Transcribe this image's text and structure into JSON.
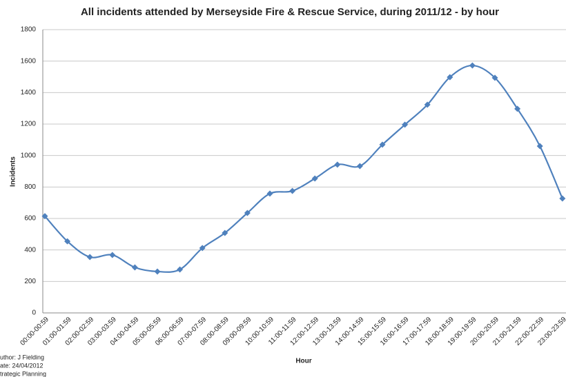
{
  "chart_data": {
    "type": "line",
    "title": "All incidents attended by Merseyside Fire & Rescue Service, during 2011/12 - by hour",
    "x_label": "Hour",
    "y_label": "Incidents",
    "categories": [
      "00:00-00:59",
      "01:00-01:59",
      "02:00-02:59",
      "03:00-03:59",
      "04:00-04:59",
      "05:00-05:59",
      "06:00-06:59",
      "07:00-07:59",
      "08:00-08:59",
      "09:00-09:59",
      "10:00-10:59",
      "11:00-11:59",
      "12:00-12:59",
      "13:00-13:59",
      "14:00-14:59",
      "15:00-15:59",
      "16:00-16:59",
      "17:00-17:59",
      "18:00-18:59",
      "19:00-19:59",
      "20:00-20:59",
      "21:00-21:59",
      "22:00-22:59",
      "23:00-23:59"
    ],
    "series": [
      {
        "name": "Incidents",
        "color": "#4f81bd",
        "values": [
          615,
          455,
          355,
          368,
          289,
          263,
          276,
          412,
          508,
          635,
          758,
          775,
          854,
          942,
          933,
          1069,
          1196,
          1323,
          1498,
          1572,
          1494,
          1297,
          1060,
          727
        ]
      }
    ],
    "ylim": [
      0,
      1800
    ],
    "yticks": [
      0,
      200,
      400,
      600,
      800,
      1000,
      1200,
      1400,
      1600,
      1800
    ],
    "grid": true,
    "notes": [
      "uthor: J Fielding",
      "ate: 24/04/2012",
      "trategic Planning"
    ]
  }
}
